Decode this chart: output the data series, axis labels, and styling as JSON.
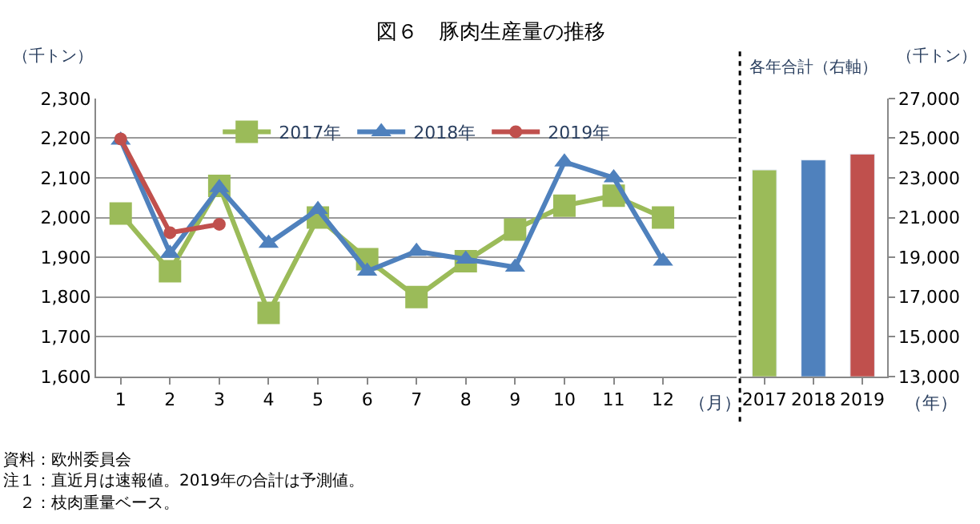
{
  "chart_data": [
    {
      "type": "line",
      "title": "図６　豚肉生産量の推移",
      "ylabel": "（千トン）",
      "xlabel": "（月）",
      "x": [
        1,
        2,
        3,
        4,
        5,
        6,
        7,
        8,
        9,
        10,
        11,
        12
      ],
      "xlim": [
        0.5,
        13.5
      ],
      "xticks": [
        1,
        2,
        3,
        4,
        5,
        6,
        7,
        8,
        9,
        10,
        11,
        12
      ],
      "ylim": [
        1600,
        2300
      ],
      "yticks": [
        {
          "value": 1600,
          "label": "1,600"
        },
        {
          "value": 1700,
          "label": "1,700"
        },
        {
          "value": 1800,
          "label": "1,800"
        },
        {
          "value": 1900,
          "label": "1,900"
        },
        {
          "value": 2000,
          "label": "2,000"
        },
        {
          "value": 2100,
          "label": "2,100"
        },
        {
          "value": 2200,
          "label": "2,200"
        },
        {
          "value": 2300,
          "label": "2,300"
        }
      ],
      "grid": "y",
      "legend": "top",
      "series": [
        {
          "name": "2017年",
          "color": "#9bbb59",
          "marker": "square",
          "values": [
            2010,
            1865,
            2080,
            1760,
            2000,
            1895,
            1800,
            1890,
            1970,
            2030,
            2055,
            2000
          ]
        },
        {
          "name": "2018年",
          "color": "#4f81bd",
          "marker": "triangle",
          "values": [
            2195,
            1910,
            2075,
            1935,
            2020,
            1865,
            1915,
            1895,
            1875,
            2140,
            2100,
            1890
          ]
        },
        {
          "name": "2019年",
          "color": "#c0504d",
          "marker": "circle",
          "values": [
            2198,
            1962,
            1983,
            null,
            null,
            null,
            null,
            null,
            null,
            null,
            null,
            null
          ]
        }
      ],
      "annotations": [
        "資料：欧州委員会",
        "注１：直近月は速報値。2019年の合計は予測値。",
        "　２：枝肉重量ベース。"
      ]
    },
    {
      "type": "bar",
      "title": "各年合計（右軸）",
      "ylabel": "（千トン）",
      "xlabel": "（年）",
      "categories": [
        "2017",
        "2018",
        "2019"
      ],
      "values": [
        23400,
        23900,
        24200
      ],
      "colors": [
        "#9bbb59",
        "#4f81bd",
        "#c0504d"
      ],
      "ylim": [
        13000,
        27000
      ],
      "yticks": [
        {
          "value": 13000,
          "label": "13,000"
        },
        {
          "value": 15000,
          "label": "15,000"
        },
        {
          "value": 17000,
          "label": "17,000"
        },
        {
          "value": 19000,
          "label": "19,000"
        },
        {
          "value": 21000,
          "label": "21,000"
        },
        {
          "value": 23000,
          "label": "23,000"
        },
        {
          "value": 25000,
          "label": "25,000"
        },
        {
          "value": 27000,
          "label": "27,000"
        }
      ],
      "grid": false
    }
  ]
}
